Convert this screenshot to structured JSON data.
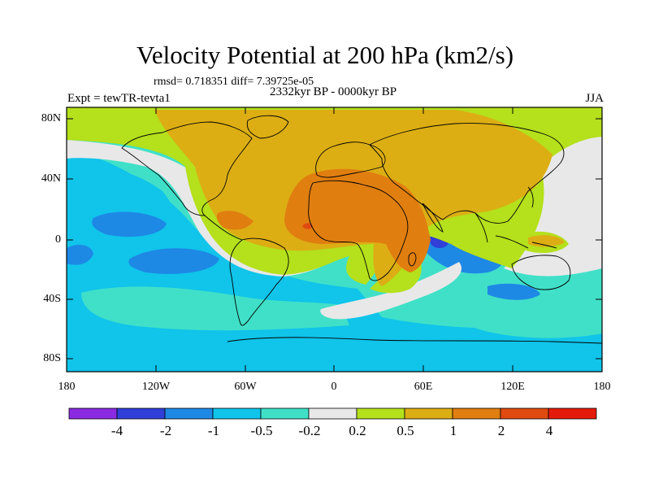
{
  "title": "Velocity Potential at 200 hPa (km2/s)",
  "stats": "rmsd= 0.718351 diff= 7.39725e-05",
  "period": "2332kyr BP - 0000kyr BP",
  "experiment": "Expt = tewTR-tevta1",
  "season": "JJA",
  "lat_labels": [
    "80N",
    "40N",
    "0",
    "40S",
    "80S"
  ],
  "lon_labels": [
    "180",
    "120W",
    "60W",
    "0",
    "60E",
    "120E",
    "180"
  ],
  "colorbar": {
    "labels": [
      "-4",
      "-2",
      "-1",
      "-0.5",
      "-0.2",
      "0.2",
      "0.5",
      "1",
      "2",
      "4"
    ],
    "colors": [
      "#8a2be2",
      "#2f3fd8",
      "#1e88e5",
      "#10c4ea",
      "#40e0c8",
      "#e8e8e8",
      "#b4e01c",
      "#dcae14",
      "#e07e10",
      "#e04a10",
      "#e41a0a"
    ]
  }
}
